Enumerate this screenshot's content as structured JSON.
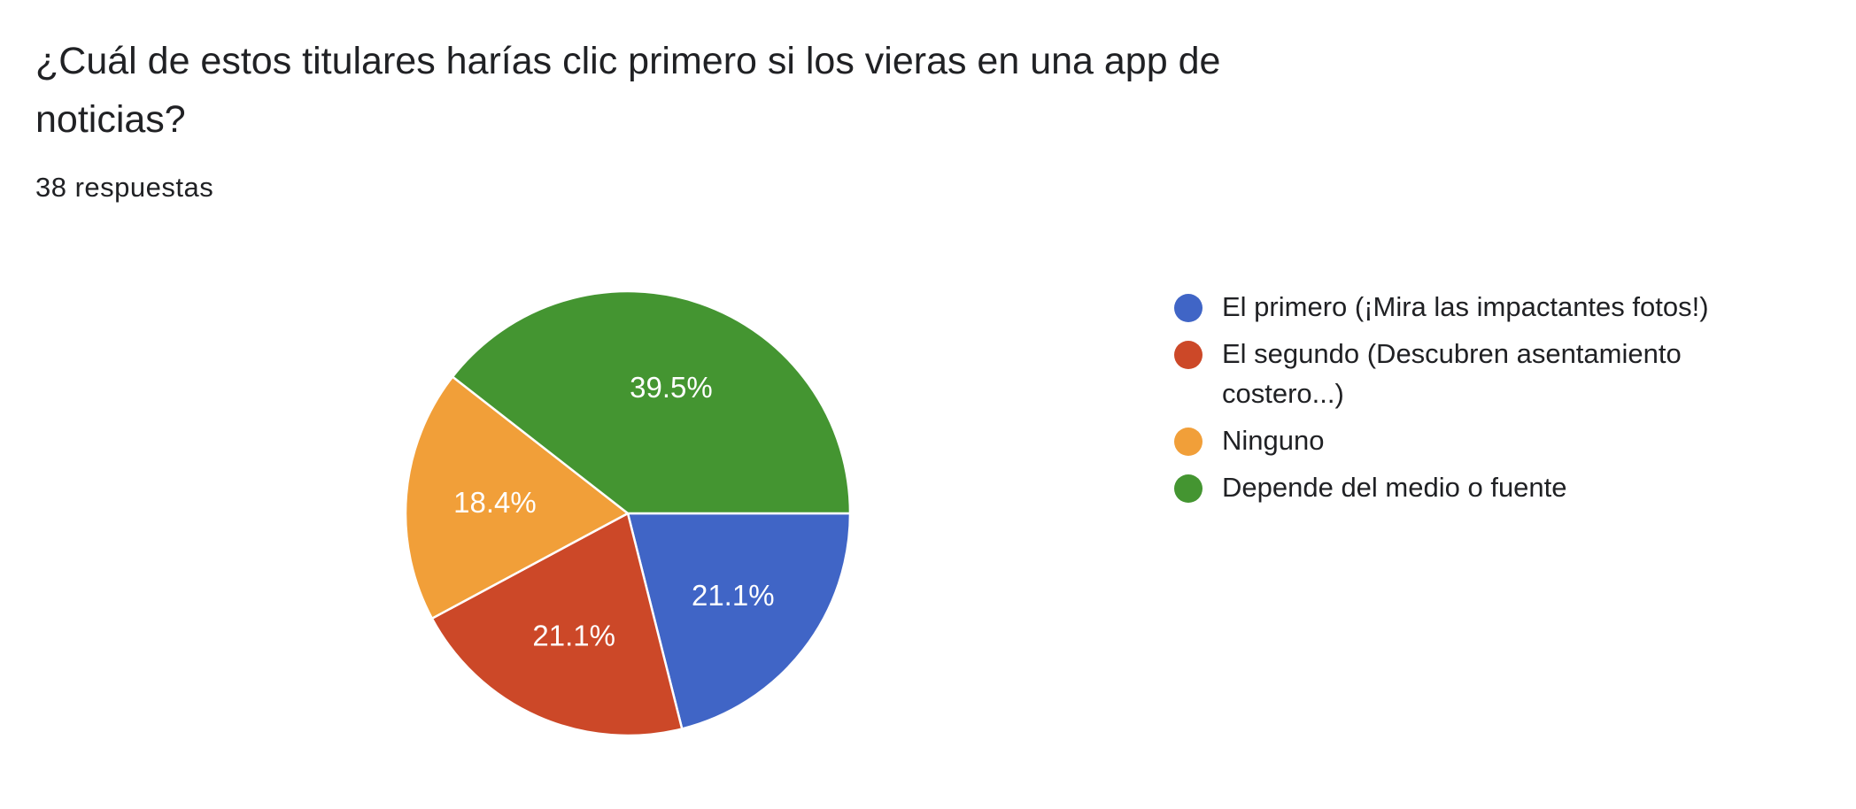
{
  "header": {
    "title": "¿Cuál de estos titulares harías clic primero si los vieras en una app de noticias?",
    "response_count": "38 respuestas"
  },
  "chart_data": {
    "type": "pie",
    "categories": [
      "El primero (¡Mira las impactantes fotos!)",
      "El segundo (Descubren asentamiento costero...)",
      "Ninguno",
      "Depende del medio o fuente"
    ],
    "values": [
      21.1,
      21.1,
      18.4,
      39.5
    ],
    "data_labels": [
      "21.1%",
      "21.1%",
      "18.4%",
      "39.5%"
    ],
    "colors": [
      "#4065c6",
      "#cc4828",
      "#f19f39",
      "#449531"
    ],
    "legend_position": "right",
    "start_angle": "90 degrees clockwise from top (3 o'clock)",
    "direction": "clockwise"
  }
}
